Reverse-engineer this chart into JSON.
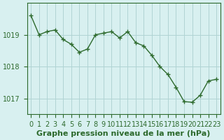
{
  "hours": [
    0,
    1,
    2,
    3,
    4,
    5,
    6,
    7,
    8,
    9,
    10,
    11,
    12,
    13,
    14,
    15,
    16,
    17,
    18,
    19,
    20,
    21,
    22,
    23
  ],
  "pressure": [
    1019.6,
    1019.0,
    1019.1,
    1019.15,
    1018.85,
    1018.7,
    1018.45,
    1018.55,
    1019.0,
    1019.05,
    1019.1,
    1018.9,
    1019.1,
    1018.75,
    1018.65,
    1018.35,
    1018.0,
    1017.75,
    1017.35,
    1016.9,
    1016.88,
    1017.1,
    1017.55,
    1017.6
  ],
  "line_color": "#2d6a2d",
  "marker_color": "#2d6a2d",
  "bg_color": "#d8f0f0",
  "grid_color": "#b0d4d4",
  "axis_color": "#2d6a2d",
  "tick_color": "#2d6a2d",
  "xlabel": "Graphe pression niveau de la mer (hPa)",
  "xlabel_color": "#2d6a2d",
  "ylim_min": 1016.5,
  "ylim_max": 1020.0,
  "yticks": [
    1017,
    1018,
    1019
  ],
  "label_fontsize": 8,
  "tick_fontsize": 7
}
